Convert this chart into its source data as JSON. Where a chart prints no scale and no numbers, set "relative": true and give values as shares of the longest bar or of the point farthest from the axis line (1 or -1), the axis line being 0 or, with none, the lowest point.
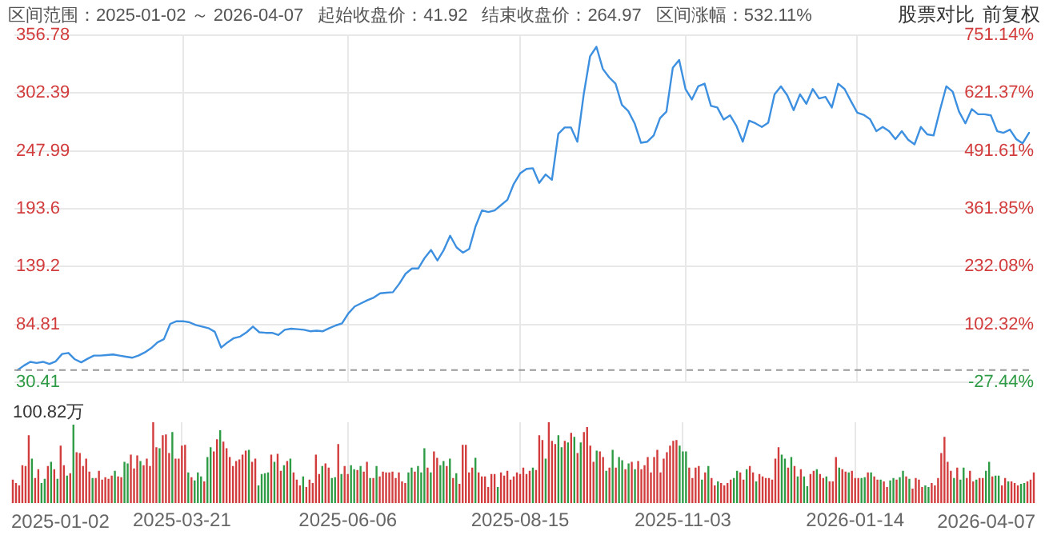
{
  "chart_data": [
    {
      "type": "line",
      "annotations": [
        "区间范围：2025-01-02 ～ 2026-04-07",
        "起始收盘价：41.92",
        "结束收盘价：264.97",
        "区间涨幅：532.11%",
        "股票对比",
        "前复权"
      ],
      "categories": [
        null,
        null,
        null,
        null,
        null,
        null,
        null,
        null,
        null,
        null,
        null,
        null,
        null,
        null,
        null,
        null,
        null,
        null,
        null,
        null,
        null,
        null,
        null,
        null,
        null,
        null,
        "2025-03-21",
        null,
        null,
        null,
        null,
        null,
        null,
        null,
        null,
        null,
        null,
        null,
        null,
        null,
        null,
        null,
        null,
        null,
        null,
        null,
        null,
        null,
        null,
        null,
        null,
        null,
        "2025-06-06",
        null,
        null,
        null,
        null,
        null,
        null,
        null,
        null,
        null,
        null,
        null,
        null,
        null,
        null,
        null,
        null,
        null,
        null,
        null,
        null,
        null,
        null,
        null,
        null,
        null,
        null,
        "2025-08-15",
        null,
        null,
        null,
        null,
        null,
        null,
        null,
        null,
        null,
        null,
        null,
        null,
        null,
        null,
        null,
        null,
        null,
        null,
        null,
        null,
        null,
        null,
        null,
        null,
        null,
        "2025-11-03",
        null,
        null,
        null,
        null,
        null,
        null,
        null,
        null,
        null,
        null,
        null,
        null,
        null,
        null,
        null,
        null,
        null,
        null,
        null,
        null,
        null,
        null,
        null,
        null,
        null,
        null,
        "2026-01-14",
        null,
        null,
        null,
        null,
        null,
        null,
        null,
        null,
        null,
        null,
        null,
        null,
        null,
        null,
        null,
        null,
        null,
        null,
        null,
        null,
        null,
        null,
        null,
        null,
        null,
        null,
        null
      ],
      "series": [
        {
          "color": "#3d8fe0",
          "values": [
            41.9,
            46.1,
            49.6,
            48.6,
            49.6,
            47.6,
            50.1,
            57.0,
            58.0,
            52.0,
            49.1,
            52.5,
            55.5,
            55.5,
            56.0,
            56.5,
            55.5,
            54.5,
            53.5,
            55.5,
            58.5,
            62.5,
            67.9,
            70.9,
            85.3,
            87.8,
            87.8,
            86.8,
            84.3,
            82.8,
            81.3,
            77.9,
            63.0,
            67.9,
            71.9,
            73.4,
            77.4,
            82.8,
            77.4,
            76.9,
            76.9,
            74.9,
            79.8,
            80.8,
            80.3,
            79.8,
            78.4,
            78.9,
            78.4,
            81.3,
            83.8,
            85.8,
            95.2,
            101.7,
            104.7,
            107.6,
            110.1,
            114.1,
            114.6,
            115.1,
            123.0,
            132.5,
            137.4,
            137.4,
            147.4,
            154.8,
            144.9,
            154.8,
            168.2,
            157.3,
            152.3,
            155.8,
            177.1,
            192.0,
            190.5,
            192.0,
            197.0,
            202.0,
            216.9,
            226.8,
            231.0,
            231.7,
            217.8,
            225.8,
            220.8,
            264.0,
            270.0,
            270.0,
            256.6,
            301.2,
            337.0,
            345.9,
            325.1,
            317.1,
            311.2,
            291.3,
            285.4,
            273.9,
            255.6,
            256.6,
            262.5,
            278.9,
            284.9,
            326.1,
            333.5,
            306.2,
            296.3,
            308.7,
            311.2,
            290.3,
            288.8,
            277.4,
            281.4,
            271.5,
            256.6,
            276.4,
            273.9,
            270.5,
            274.4,
            301.2,
            308.7,
            300.2,
            286.3,
            301.2,
            292.3,
            306.2,
            297.3,
            298.8,
            288.8,
            311.2,
            306.2,
            294.8,
            283.9,
            281.9,
            277.9,
            266.5,
            270.5,
            266.5,
            259.0,
            266.5,
            258.5,
            254.1,
            270.5,
            263.5,
            262.5,
            286.3,
            308.7,
            303.7,
            284.9,
            273.9,
            287.3,
            282.4,
            282.4,
            281.4,
            266.5,
            265.0,
            268.0,
            259.0,
            255.1,
            265.0
          ]
        }
      ],
      "ylim": [
        30.41,
        356.78
      ],
      "yticks": [
        30.41,
        84.81,
        139.2,
        193.6,
        247.99,
        302.39,
        356.78
      ],
      "y2lim": [
        -27.44,
        751.14
      ],
      "y2ticks": [
        {
          "value": -27.44,
          "label": "-27.44%"
        },
        {
          "value": 102.32,
          "label": "102.32%"
        },
        {
          "value": 232.08,
          "label": "232.08%"
        },
        {
          "value": 361.85,
          "label": "361.85%"
        },
        {
          "value": 491.61,
          "label": "491.61%"
        },
        {
          "value": 621.37,
          "label": "621.37%"
        },
        {
          "value": 751.14,
          "label": "751.14%"
        }
      ],
      "ref_lines": [
        {
          "axis": "y",
          "value": 41.92,
          "color": "#999999",
          "line_style": "dashed"
        }
      ],
      "grid": true,
      "legend": false,
      "marker": "none",
      "line_style": "solid",
      "tick_labels": "y"
    },
    {
      "type": "bar",
      "relative": true,
      "annotations": [
        "100.82万",
        "2025-01-02",
        "2026-04-07"
      ],
      "categories": [
        null,
        null,
        null,
        null,
        null,
        null,
        null,
        null,
        null,
        null,
        null,
        null,
        null,
        null,
        null,
        null,
        null,
        null,
        null,
        null,
        null,
        null,
        null,
        null,
        null,
        null,
        null,
        null,
        null,
        null,
        null,
        null,
        null,
        null,
        null,
        null,
        null,
        null,
        null,
        null,
        null,
        null,
        null,
        null,
        null,
        null,
        null,
        null,
        null,
        null,
        null,
        null,
        null,
        "2025-03-21",
        null,
        null,
        null,
        null,
        null,
        null,
        null,
        null,
        null,
        null,
        null,
        null,
        null,
        null,
        null,
        null,
        null,
        null,
        null,
        null,
        null,
        null,
        null,
        null,
        null,
        null,
        null,
        null,
        null,
        null,
        null,
        null,
        null,
        null,
        null,
        null,
        null,
        null,
        null,
        null,
        null,
        null,
        null,
        null,
        null,
        null,
        null,
        null,
        null,
        null,
        null,
        "2025-06-06",
        null,
        null,
        null,
        null,
        null,
        null,
        null,
        null,
        null,
        null,
        null,
        null,
        null,
        null,
        null,
        null,
        null,
        null,
        null,
        null,
        null,
        null,
        null,
        null,
        null,
        null,
        null,
        null,
        null,
        null,
        null,
        null,
        null,
        null,
        null,
        null,
        null,
        null,
        null,
        null,
        null,
        null,
        null,
        null,
        null,
        null,
        null,
        null,
        null,
        null,
        null,
        null,
        null,
        "2025-08-15",
        null,
        null,
        null,
        null,
        null,
        null,
        null,
        null,
        null,
        null,
        null,
        null,
        null,
        null,
        null,
        null,
        null,
        null,
        null,
        null,
        null,
        null,
        null,
        null,
        null,
        null,
        null,
        null,
        null,
        null,
        null,
        null,
        null,
        null,
        null,
        null,
        null,
        null,
        null,
        null,
        null,
        null,
        null,
        null,
        null,
        null,
        null,
        null,
        null,
        null,
        "2025-11-03",
        null,
        null,
        null,
        null,
        null,
        null,
        null,
        null,
        null,
        null,
        null,
        null,
        null,
        null,
        null,
        null,
        null,
        null,
        null,
        null,
        null,
        null,
        null,
        null,
        null,
        null,
        null,
        null,
        null,
        null,
        null,
        null,
        null,
        null,
        null,
        null,
        null,
        null,
        null,
        null,
        null,
        null,
        null,
        null,
        null,
        null,
        null,
        null,
        null,
        null,
        null,
        null,
        null,
        "2026-01-14",
        null,
        null,
        null,
        null,
        null,
        null,
        null,
        null,
        null,
        null,
        null,
        null,
        null,
        null,
        null,
        null,
        null,
        null,
        null,
        null,
        null,
        null,
        null,
        null,
        null,
        null,
        null,
        null,
        null,
        null,
        null,
        null,
        null,
        null,
        null,
        null,
        null,
        null,
        null,
        null,
        null,
        null,
        null,
        null,
        null,
        null,
        null,
        null,
        null,
        null,
        null,
        null,
        null,
        null,
        null,
        null
      ],
      "values": [
        0.29,
        0.25,
        0.22,
        0.47,
        0.46,
        0.84,
        0.55,
        0.31,
        0.42,
        0.25,
        0.3,
        0.46,
        0.51,
        0.42,
        0.3,
        0.71,
        0.47,
        0.34,
        0.37,
        0.97,
        0.63,
        0.62,
        0.46,
        0.55,
        0.39,
        0.31,
        0.31,
        0.4,
        0.29,
        0.32,
        0.3,
        0.34,
        0.4,
        0.33,
        0.32,
        0.51,
        0.49,
        0.6,
        0.43,
        0.59,
        0.52,
        0.47,
        0.55,
        0.46,
        1,
        0.69,
        0.68,
        0.84,
        0.85,
        0.62,
        0.88,
        0.55,
        0.55,
        0.71,
        0.72,
        0.38,
        0.32,
        0.28,
        0.38,
        0.33,
        0.27,
        0.57,
        0.69,
        0.64,
        0.79,
        0.9,
        0.76,
        0.68,
        0.57,
        0.46,
        0.52,
        0.54,
        0.6,
        0.65,
        0.66,
        0.51,
        0.55,
        0.22,
        0.36,
        0.37,
        0.38,
        0.6,
        0.51,
        0.61,
        0.4,
        0.47,
        0.52,
        0.55,
        0.38,
        0.29,
        0.22,
        0.33,
        0.2,
        0.29,
        0.25,
        0.6,
        0.36,
        0.46,
        0.49,
        0.44,
        0.31,
        0.32,
        0.73,
        0.36,
        0.46,
        0.36,
        0.47,
        0.42,
        0.41,
        0.46,
        0.39,
        0.51,
        0.31,
        0.31,
        0.46,
        0.33,
        0.39,
        0.38,
        0.38,
        0.39,
        0.31,
        0.38,
        0.27,
        0.25,
        0.38,
        0.44,
        0.39,
        0.46,
        0.38,
        0.68,
        0.44,
        0.38,
        0.64,
        0.56,
        0.47,
        0.52,
        0.46,
        0.55,
        0.31,
        0.37,
        0.24,
        0.72,
        0.72,
        0.38,
        0.44,
        0.56,
        0.38,
        0.33,
        0.33,
        0.2,
        0.36,
        0.36,
        0.2,
        0.38,
        0.34,
        0.4,
        0.29,
        0.33,
        0.38,
        0.36,
        0.44,
        0.36,
        0.4,
        0.44,
        0.41,
        0.84,
        0.78,
        0.55,
        1,
        0.77,
        0.73,
        0.84,
        0.69,
        0.77,
        0.75,
        0.87,
        0.82,
        0.62,
        0.75,
        0.88,
        0.94,
        0.71,
        0.51,
        0.65,
        0.64,
        0.57,
        0.4,
        0.44,
        0.66,
        0.44,
        0.57,
        0.53,
        0.42,
        0.49,
        0.51,
        0.42,
        0.52,
        0.42,
        0.47,
        0.57,
        0.38,
        0.57,
        0.66,
        0.38,
        0.55,
        0.63,
        0.71,
        0.77,
        0.78,
        0.71,
        0.64,
        0.64,
        0.44,
        0.31,
        0.44,
        0.46,
        0.29,
        0.38,
        0.46,
        0.31,
        0.22,
        0.27,
        0.25,
        0.22,
        0.25,
        0.29,
        0.31,
        0.4,
        0.38,
        0.29,
        0.42,
        0.46,
        0.38,
        0.27,
        0.36,
        0.33,
        0.31,
        0.31,
        0.29,
        0.55,
        0.69,
        0.6,
        0.55,
        0.44,
        0.57,
        0.46,
        0.33,
        0.42,
        0.33,
        0.21,
        0.36,
        0.4,
        0.42,
        0.36,
        0.31,
        0.33,
        0.27,
        0.27,
        0.57,
        0.44,
        0.42,
        0.39,
        0.38,
        0.4,
        0.31,
        0.31,
        0.31,
        0.32,
        0.38,
        0.38,
        0.33,
        0.29,
        0.29,
        0.27,
        0.2,
        0.28,
        0.31,
        0.29,
        0.32,
        0.4,
        0.33,
        0.3,
        0.18,
        0.31,
        0.29,
        0.2,
        0.22,
        0.2,
        0.25,
        0.22,
        0.31,
        0.62,
        0.82,
        0.51,
        0.4,
        0.31,
        0.44,
        0.29,
        0.44,
        0.31,
        0.4,
        0.27,
        0.29,
        0.31,
        0.31,
        0.4,
        0.51,
        0.33,
        0.34,
        0.34,
        0.22,
        0.31,
        0.27,
        0.27,
        0.25,
        0.22,
        0.24,
        0.25,
        0.27,
        0.29,
        0.38
      ],
      "colors": [
        "#d23c3c",
        "#d23c3c",
        "#d23c3c",
        "#d23c3c",
        "#d23c3c",
        "#d23c3c",
        "#2e9b45",
        "#d23c3c",
        "#d23c3c",
        "#2e9b45",
        "#2e9b45",
        "#d23c3c",
        "#2e9b45",
        "#d23c3c",
        "#2e9b45",
        "#d23c3c",
        "#d23c3c",
        "#2e9b45",
        "#d23c3c",
        "#2e9b45",
        "#d23c3c",
        "#d23c3c",
        "#d23c3c",
        "#d23c3c",
        "#d23c3c",
        "#2e9b45",
        "#d23c3c",
        "#d23c3c",
        "#d23c3c",
        "#d23c3c",
        "#d23c3c",
        "#d23c3c",
        "#2e9b45",
        "#d23c3c",
        "#d23c3c",
        "#2e9b45",
        "#2e9b45",
        "#d23c3c",
        "#d23c3c",
        "#d23c3c",
        "#2e9b45",
        "#d23c3c",
        "#d23c3c",
        "#d23c3c",
        "#d23c3c",
        "#d23c3c",
        "#2e9b45",
        "#d23c3c",
        "#d23c3c",
        "#d23c3c",
        "#2e9b45",
        "#d23c3c",
        "#d23c3c",
        "#d23c3c",
        "#d23c3c",
        "#2e9b45",
        "#d23c3c",
        "#2e9b45",
        "#2e9b45",
        "#2e9b45",
        "#d23c3c",
        "#2e9b45",
        "#2e9b45",
        "#d23c3c",
        "#d23c3c",
        "#2e9b45",
        "#d23c3c",
        "#d23c3c",
        "#d23c3c",
        "#d23c3c",
        "#d23c3c",
        "#d23c3c",
        "#d23c3c",
        "#d23c3c",
        "#2e9b45",
        "#d23c3c",
        "#d23c3c",
        "#2e9b45",
        "#2e9b45",
        "#2e9b45",
        "#2e9b45",
        "#d23c3c",
        "#2e9b45",
        "#d23c3c",
        "#d23c3c",
        "#2e9b45",
        "#d23c3c",
        "#2e9b45",
        "#d23c3c",
        "#d23c3c",
        "#d23c3c",
        "#2e9b45",
        "#d23c3c",
        "#d23c3c",
        "#d23c3c",
        "#d23c3c",
        "#d23c3c",
        "#2e9b45",
        "#d23c3c",
        "#d23c3c",
        "#2e9b45",
        "#2e9b45",
        "#d23c3c",
        "#2e9b45",
        "#d23c3c",
        "#d23c3c",
        "#2e9b45",
        "#2e9b45",
        "#d23c3c",
        "#2e9b45",
        "#d23c3c",
        "#d23c3c",
        "#2e9b45",
        "#d23c3c",
        "#2e9b45",
        "#d23c3c",
        "#d23c3c",
        "#d23c3c",
        "#d23c3c",
        "#d23c3c",
        "#d23c3c",
        "#d23c3c",
        "#d23c3c",
        "#d23c3c",
        "#2e9b45",
        "#2e9b45",
        "#d23c3c",
        "#2e9b45",
        "#2e9b45",
        "#2e9b45",
        "#d23c3c",
        "#2e9b45",
        "#d23c3c",
        "#d23c3c",
        "#2e9b45",
        "#2e9b45",
        "#d23c3c",
        "#2e9b45",
        "#d23c3c",
        "#2e9b45",
        "#d23c3c",
        "#d23c3c",
        "#d23c3c",
        "#d23c3c",
        "#d23c3c",
        "#2e9b45",
        "#d23c3c",
        "#d23c3c",
        "#d23c3c",
        "#d23c3c",
        "#d23c3c",
        "#d23c3c",
        "#2e9b45",
        "#d23c3c",
        "#d23c3c",
        "#d23c3c",
        "#d23c3c",
        "#d23c3c",
        "#d23c3c",
        "#d23c3c",
        "#d23c3c",
        "#d23c3c",
        "#d23c3c",
        "#2e9b45",
        "#d23c3c",
        "#d23c3c",
        "#d23c3c",
        "#2e9b45",
        "#d23c3c",
        "#d23c3c",
        "#d23c3c",
        "#2e9b45",
        "#2e9b45",
        "#d23c3c",
        "#2e9b45",
        "#d23c3c",
        "#2e9b45",
        "#d23c3c",
        "#2e9b45",
        "#d23c3c",
        "#d23c3c",
        "#d23c3c",
        "#d23c3c",
        "#2e9b45",
        "#d23c3c",
        "#d23c3c",
        "#2e9b45",
        "#d23c3c",
        "#2e9b45",
        "#d23c3c",
        "#2e9b45",
        "#2e9b45",
        "#d23c3c",
        "#2e9b45",
        "#d23c3c",
        "#2e9b45",
        "#d23c3c",
        "#d23c3c",
        "#d23c3c",
        "#d23c3c",
        "#d23c3c",
        "#d23c3c",
        "#d23c3c",
        "#d23c3c",
        "#d23c3c",
        "#d23c3c",
        "#d23c3c",
        "#d23c3c",
        "#d23c3c",
        "#2e9b45",
        "#2e9b45",
        "#2e9b45",
        "#d23c3c",
        "#d23c3c",
        "#d23c3c",
        "#d23c3c",
        "#2e9b45",
        "#d23c3c",
        "#2e9b45",
        "#d23c3c",
        "#d23c3c",
        "#2e9b45",
        "#d23c3c",
        "#d23c3c",
        "#d23c3c",
        "#d23c3c",
        "#2e9b45",
        "#2e9b45",
        "#d23c3c",
        "#d23c3c",
        "#2e9b45",
        "#d23c3c",
        "#d23c3c",
        "#2e9b45",
        "#d23c3c",
        "#d23c3c",
        "#d23c3c",
        "#d23c3c",
        "#d23c3c",
        "#d23c3c",
        "#d23c3c",
        "#2e9b45",
        "#2e9b45",
        "#d23c3c",
        "#2e9b45",
        "#d23c3c",
        "#2e9b45",
        "#d23c3c",
        "#2e9b45",
        "#2e9b45",
        "#d23c3c",
        "#d23c3c",
        "#2e9b45",
        "#d23c3c",
        "#d23c3c",
        "#2e9b45",
        "#d23c3c",
        "#d23c3c",
        "#d23c3c",
        "#2e9b45",
        "#d23c3c",
        "#d23c3c",
        "#2e9b45",
        "#d23c3c",
        "#d23c3c",
        "#d23c3c",
        "#2e9b45",
        "#2e9b45",
        "#d23c3c",
        "#2e9b45",
        "#d23c3c",
        "#d23c3c",
        "#2e9b45",
        "#d23c3c",
        "#d23c3c",
        "#2e9b45",
        "#2e9b45",
        "#d23c3c",
        "#2e9b45",
        "#2e9b45",
        "#d23c3c",
        "#2e9b45",
        "#d23c3c",
        "#d23c3c",
        "#d23c3c",
        "#d23c3c",
        "#2e9b45",
        "#2e9b45",
        "#d23c3c",
        "#d23c3c",
        "#d23c3c",
        "#d23c3c",
        "#d23c3c",
        "#d23c3c",
        "#d23c3c",
        "#2e9b45",
        "#d23c3c",
        "#2e9b45",
        "#2e9b45",
        "#d23c3c",
        "#d23c3c",
        "#d23c3c",
        "#2e9b45",
        "#d23c3c",
        "#d23c3c",
        "#2e9b45",
        "#2e9b45",
        "#d23c3c",
        "#2e9b45",
        "#2e9b45",
        "#d23c3c",
        "#d23c3c",
        "#2e9b45",
        "#d23c3c",
        "#d23c3c",
        "#d23c3c",
        "#2e9b45",
        "#2e9b45",
        "#d23c3c",
        "#d23c3c",
        "#d23c3c"
      ],
      "grid": "x",
      "legend": false,
      "tick_labels": "x"
    }
  ]
}
